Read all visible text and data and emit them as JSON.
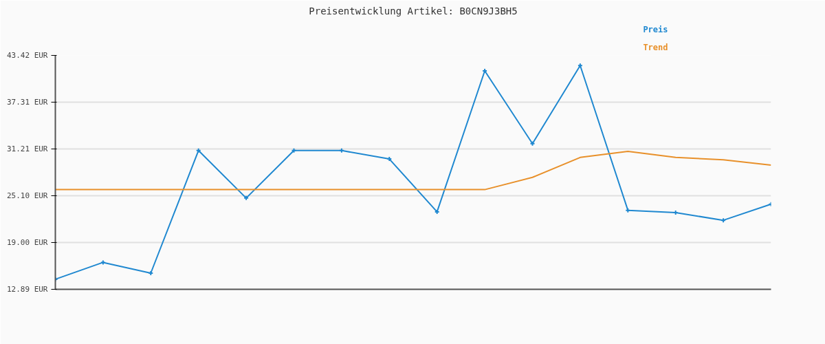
{
  "chart_data": {
    "type": "line",
    "title": "Preisentwicklung Artikel: B0CN9J3BH5",
    "categories": [
      null,
      null,
      null,
      null,
      null,
      null,
      null,
      null,
      null,
      null,
      null,
      null,
      null,
      null,
      null,
      null
    ],
    "series": [
      {
        "name": "Preis",
        "color": "#1f88d0",
        "marker": "cross",
        "values": [
          14.2,
          16.4,
          15.0,
          31.0,
          24.8,
          31.0,
          31.0,
          29.9,
          23.0,
          41.4,
          31.9,
          42.1,
          23.2,
          22.9,
          21.9,
          24.0
        ]
      },
      {
        "name": "Trend",
        "color": "#e8902a",
        "marker": "none",
        "values": [
          25.9,
          25.9,
          25.9,
          25.9,
          25.9,
          25.9,
          25.9,
          25.9,
          25.9,
          25.9,
          27.5,
          30.1,
          30.9,
          30.1,
          29.8,
          29.1
        ]
      }
    ],
    "ylim": [
      12.89,
      43.42
    ],
    "yticks": [
      {
        "value": 12.89,
        "label": "12.89 EUR"
      },
      {
        "value": 19.0,
        "label": "19.00 EUR"
      },
      {
        "value": 25.1,
        "label": "25.10 EUR"
      },
      {
        "value": 31.21,
        "label": "31.21 EUR"
      },
      {
        "value": 37.31,
        "label": "37.31 EUR"
      },
      {
        "value": 43.42,
        "label": "43.42 EUR"
      }
    ],
    "grid": "y",
    "legend": "top right",
    "line_style": "solid"
  }
}
